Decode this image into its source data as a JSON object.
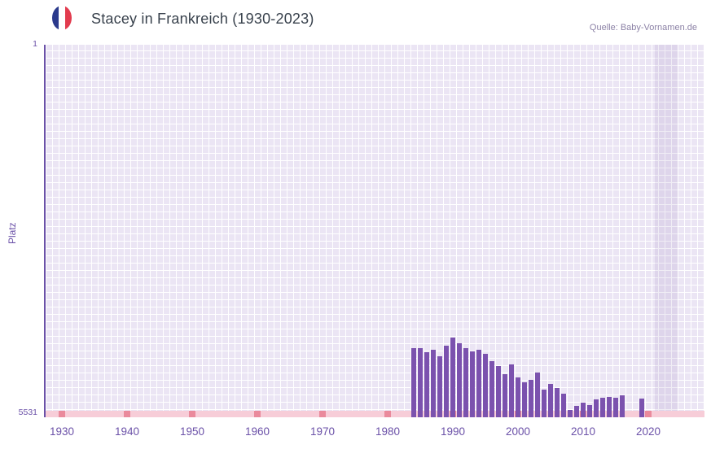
{
  "header": {
    "title": "Stacey in Frankreich (1930-2023)",
    "source": "Quelle: Baby-Vornamen.de",
    "flag_icon": "france-flag-icon",
    "flag_colors": [
      "#2b3a8c",
      "#ffffff",
      "#e23b4e"
    ]
  },
  "colors": {
    "title_text": "#39424d",
    "axis_text": "#6b51a8",
    "bar": "#7b52ae",
    "plot_background": "#ebe5f4",
    "gridlines": "#ffffff",
    "unranked_band": "#f7cdd8",
    "unranked_decade_mark": "#ea8a9c",
    "source_text": "#8c82a6",
    "shaded_region": "rgba(110,82,160,0.10)"
  },
  "chart_data": {
    "type": "bar",
    "title": "Stacey in Frankreich (1930-2023)",
    "xlabel": "",
    "ylabel": "Platz",
    "legend": false,
    "grid": true,
    "y_axis": {
      "min": 1,
      "max": 5531,
      "reversed": true,
      "top_label": "1",
      "bottom_label": "5531"
    },
    "x_ticks": [
      1930,
      1940,
      1950,
      1960,
      1970,
      1980,
      1990,
      2000,
      2010,
      2020
    ],
    "years": [
      1984,
      1985,
      1986,
      1987,
      1988,
      1989,
      1990,
      1991,
      1992,
      1993,
      1994,
      1995,
      1996,
      1997,
      1998,
      1999,
      2000,
      2001,
      2002,
      2003,
      2004,
      2005,
      2006,
      2007,
      2008,
      2009,
      2010,
      2011,
      2012,
      2013,
      2014,
      2015,
      2016,
      2019
    ],
    "ranks": [
      4510,
      4500,
      4570,
      4530,
      4620,
      4465,
      4345,
      4430,
      4500,
      4550,
      4525,
      4585,
      4695,
      4765,
      4885,
      4740,
      4935,
      5010,
      4975,
      4865,
      5120,
      5030,
      5090,
      5175,
      5420,
      5360,
      5310,
      5345,
      5270,
      5245,
      5225,
      5245,
      5210,
      5255
    ],
    "unranked_band_decade_marks": [
      1930,
      1940,
      1950,
      1960,
      1970,
      1980,
      1990,
      2000,
      2010,
      2020
    ],
    "shaded_region_years": [
      2021,
      2024.5
    ]
  }
}
